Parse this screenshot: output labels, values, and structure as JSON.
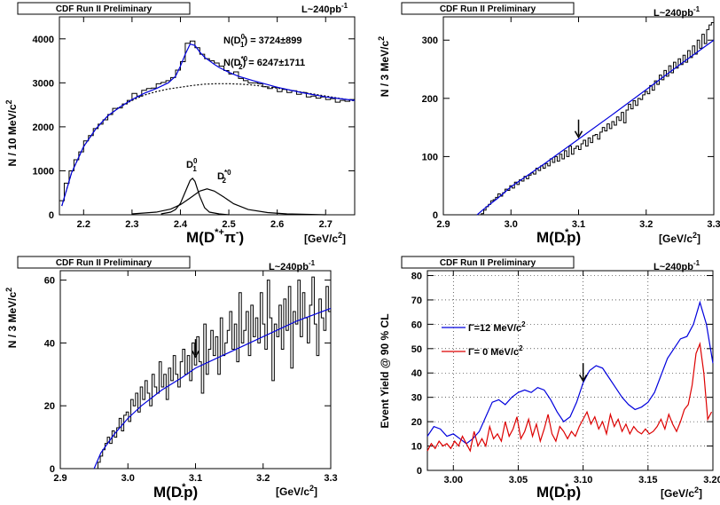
{
  "chart_data": [
    {
      "type": "histogram",
      "header": "CDF Run II Preliminary",
      "lumi_prefix": "L~240pb",
      "lumi_sup": "-1",
      "xlabel": "M(D",
      "xlabel_sup": "*+",
      "xlabel_end": "π",
      "xlabel_sup2": "-",
      "xlabel_close": ")",
      "xunit": "[GeV/c",
      "xunit_sup": "2",
      "xunit_close": "]",
      "ylabel": "N / 10 MeV/c",
      "ylabel_sup": "2",
      "xlim": [
        2.15,
        2.76
      ],
      "ylim": [
        0,
        4500
      ],
      "xticks": [
        2.2,
        2.3,
        2.4,
        2.5,
        2.6,
        2.7
      ],
      "xtick_labels": [
        "2.2",
        "2.3",
        "2.4",
        "2.5",
        "2.6",
        "2.7"
      ],
      "yticks": [
        0,
        1000,
        2000,
        3000,
        4000
      ],
      "ytick_labels": [
        "0",
        "1000",
        "2000",
        "3000",
        "4000"
      ],
      "ann1_a": "N(D",
      "ann1_sup": "0",
      "ann1_sub": "1",
      "ann1_b": ") = 3724±899",
      "ann2_a": "N(D",
      "ann2_sup": "*0",
      "ann2_sub": "2",
      "ann2_b": ") = 6247±1711",
      "peak1_label": "D",
      "peak1_sup": "0",
      "peak1_sub": "1",
      "peak2_label": "D",
      "peak2_sup": "*0",
      "peak2_sub": "2",
      "hist_x": [
        2.155,
        2.165,
        2.175,
        2.185,
        2.195,
        2.205,
        2.215,
        2.225,
        2.235,
        2.245,
        2.255,
        2.265,
        2.275,
        2.285,
        2.295,
        2.305,
        2.315,
        2.325,
        2.335,
        2.345,
        2.355,
        2.365,
        2.375,
        2.385,
        2.395,
        2.405,
        2.415,
        2.425,
        2.435,
        2.445,
        2.455,
        2.465,
        2.475,
        2.485,
        2.495,
        2.505,
        2.515,
        2.525,
        2.535,
        2.545,
        2.555,
        2.565,
        2.575,
        2.585,
        2.595,
        2.605,
        2.615,
        2.625,
        2.635,
        2.645,
        2.655,
        2.665,
        2.675,
        2.685,
        2.695,
        2.705,
        2.715,
        2.725,
        2.735,
        2.745,
        2.755
      ],
      "hist_y": [
        320,
        720,
        1000,
        1250,
        1430,
        1680,
        1800,
        1960,
        2060,
        2160,
        2280,
        2420,
        2430,
        2520,
        2600,
        2760,
        2700,
        2830,
        2870,
        2880,
        2980,
        3010,
        3050,
        3120,
        3290,
        3480,
        3900,
        3950,
        3800,
        3650,
        3550,
        3500,
        3450,
        3380,
        3280,
        3200,
        3250,
        3100,
        3050,
        3000,
        3000,
        2980,
        2910,
        2870,
        2900,
        2800,
        2850,
        2780,
        2820,
        2740,
        2780,
        2680,
        2700,
        2650,
        2680,
        2620,
        2640,
        2560,
        2600,
        2580,
        2620
      ],
      "fit_x": [
        2.155,
        2.175,
        2.2,
        2.225,
        2.25,
        2.275,
        2.3,
        2.325,
        2.35,
        2.375,
        2.39,
        2.4,
        2.41,
        2.42,
        2.43,
        2.44,
        2.45,
        2.46,
        2.47,
        2.48,
        2.5,
        2.52,
        2.55,
        2.6,
        2.65,
        2.7,
        2.76
      ],
      "fit_y": [
        200,
        950,
        1550,
        1950,
        2250,
        2450,
        2620,
        2760,
        2870,
        3000,
        3150,
        3380,
        3650,
        3880,
        3850,
        3700,
        3580,
        3500,
        3420,
        3350,
        3240,
        3150,
        3050,
        2900,
        2780,
        2680,
        2600
      ],
      "bkg_x": [
        2.155,
        2.175,
        2.2,
        2.225,
        2.25,
        2.275,
        2.3,
        2.325,
        2.35,
        2.375,
        2.4,
        2.425,
        2.45,
        2.475,
        2.5,
        2.525,
        2.55,
        2.6,
        2.65,
        2.7,
        2.76
      ],
      "bkg_y": [
        200,
        950,
        1550,
        1950,
        2250,
        2450,
        2600,
        2720,
        2800,
        2860,
        2900,
        2940,
        2970,
        2980,
        2980,
        2970,
        2950,
        2880,
        2790,
        2700,
        2590
      ],
      "sig1_x": [
        2.36,
        2.38,
        2.39,
        2.4,
        2.41,
        2.42,
        2.425,
        2.43,
        2.44,
        2.45,
        2.46,
        2.48,
        2.5
      ],
      "sig1_y": [
        20,
        60,
        120,
        260,
        520,
        780,
        830,
        760,
        420,
        160,
        60,
        20,
        0
      ],
      "sig2_x": [
        2.3,
        2.35,
        2.38,
        2.4,
        2.42,
        2.44,
        2.455,
        2.47,
        2.49,
        2.51,
        2.54,
        2.58,
        2.62,
        2.7
      ],
      "sig2_y": [
        20,
        60,
        130,
        230,
        380,
        540,
        590,
        540,
        400,
        250,
        120,
        50,
        20,
        0
      ]
    },
    {
      "type": "histogram",
      "header": "CDF Run II Preliminary",
      "lumi_prefix": "L~240pb",
      "lumi_sup": "-1",
      "xlabel": "M(D",
      "xlabel_sup": "*",
      "xlabel_sub": "-",
      "xlabel_end": "p)",
      "xunit": "[GeV/c",
      "xunit_sup": "2",
      "xunit_close": "]",
      "ylabel": "N / 3 MeV/c",
      "ylabel_sup": "2",
      "xlim": [
        2.9,
        3.3
      ],
      "ylim": [
        0,
        340
      ],
      "xticks": [
        2.9,
        3.0,
        3.1,
        3.2,
        3.3
      ],
      "xtick_labels": [
        "2.9",
        "3.0",
        "3.1",
        "3.2",
        "3.3"
      ],
      "yticks": [
        0,
        100,
        200,
        300
      ],
      "ytick_labels": [
        "0",
        "100",
        "200",
        "300"
      ],
      "arrow_x": 3.1,
      "arrow_y": 130,
      "hist_y": [
        0,
        0,
        0,
        0,
        0,
        0,
        0,
        0,
        0,
        0,
        0,
        0,
        0,
        0,
        0,
        0,
        2,
        8,
        14,
        18,
        24,
        26,
        30,
        36,
        32,
        38,
        44,
        42,
        50,
        46,
        56,
        52,
        60,
        58,
        66,
        62,
        68,
        72,
        70,
        80,
        76,
        84,
        80,
        88,
        84,
        96,
        90,
        100,
        92,
        104,
        96,
        110,
        100,
        118,
        104,
        114,
        118,
        112,
        122,
        128,
        118,
        132,
        124,
        136,
        138,
        130,
        142,
        150,
        144,
        156,
        148,
        160,
        154,
        168,
        162,
        176,
        158,
        180,
        190,
        182,
        196,
        188,
        200,
        198,
        206,
        212,
        208,
        222,
        214,
        230,
        224,
        240,
        232,
        248,
        238,
        256,
        244,
        262,
        252,
        268,
        258,
        274,
        262,
        282,
        270,
        290,
        276,
        300,
        286,
        310,
        294,
        318,
        326,
        330
      ],
      "fit_x": [
        2.95,
        2.96,
        2.98,
        3.0,
        3.02,
        3.05,
        3.1,
        3.15,
        3.2,
        3.25,
        3.3
      ],
      "fit_y": [
        0,
        10,
        28,
        48,
        64,
        88,
        130,
        172,
        215,
        258,
        300
      ]
    },
    {
      "type": "histogram",
      "header": "CDF Run II Preliminary",
      "lumi_prefix": "L~240pb",
      "lumi_sup": "-1",
      "xlabel": "M(D",
      "xlabel_sup": "*",
      "xlabel_sub": "-",
      "xlabel_end": "p)",
      "xunit": "[GeV/c",
      "xunit_sup": "2",
      "xunit_close": "]",
      "ylabel": "N / 3 MeV/c",
      "ylabel_sup": "2",
      "xlim": [
        2.9,
        3.3
      ],
      "ylim": [
        0,
        63
      ],
      "xticks": [
        2.9,
        3.0,
        3.1,
        3.2,
        3.3
      ],
      "xtick_labels": [
        "2.9",
        "3.0",
        "3.1",
        "3.2",
        "3.3"
      ],
      "yticks": [
        0,
        20,
        40,
        60
      ],
      "ytick_labels": [
        "0",
        "20",
        "40",
        "60"
      ],
      "arrow_x": 3.1,
      "arrow_y": 35,
      "hist_y": [
        0,
        0,
        0,
        0,
        0,
        0,
        0,
        0,
        0,
        0,
        0,
        0,
        0,
        0,
        0,
        0,
        2,
        4,
        6,
        8,
        10,
        8,
        12,
        10,
        13,
        16,
        12,
        17,
        18,
        15,
        22,
        20,
        24,
        18,
        26,
        22,
        28,
        24,
        20,
        30,
        26,
        24,
        34,
        26,
        30,
        22,
        32,
        28,
        36,
        30,
        26,
        34,
        38,
        30,
        36,
        28,
        40,
        33,
        42,
        34,
        24,
        46,
        30,
        38,
        44,
        36,
        42,
        30,
        48,
        36,
        40,
        44,
        50,
        38,
        46,
        34,
        56,
        40,
        44,
        50,
        36,
        52,
        42,
        48,
        40,
        56,
        46,
        38,
        60,
        48,
        28,
        46,
        42,
        52,
        38,
        54,
        44,
        58,
        32,
        50,
        46,
        60,
        42,
        56,
        48,
        40,
        52,
        61,
        46,
        36,
        54,
        48,
        44,
        58,
        50
      ],
      "fit_x": [
        2.95,
        2.96,
        2.98,
        3.0,
        3.02,
        3.05,
        3.08,
        3.1,
        3.15,
        3.2,
        3.25,
        3.3
      ],
      "fit_y": [
        0,
        5,
        11,
        16,
        20,
        25,
        29,
        32,
        37,
        42,
        47,
        51
      ]
    },
    {
      "type": "line",
      "header": "CDF Run II Preliminary",
      "lumi_prefix": "L~240pb",
      "lumi_sup": "-1",
      "xlabel": "M(D",
      "xlabel_sup": "*",
      "xlabel_sub": "-",
      "xlabel_end": "p)",
      "xunit": "[GeV/c",
      "xunit_sup": "2",
      "xunit_close": "]",
      "ylabel": "Event Yield @ 90 % CL",
      "xlim": [
        2.98,
        3.2
      ],
      "ylim": [
        0,
        82
      ],
      "grid": true,
      "xticks": [
        3.0,
        3.05,
        3.1,
        3.15,
        3.2
      ],
      "xtick_labels": [
        "3.00",
        "3.05",
        "3.10",
        "3.15",
        "3.20"
      ],
      "yticks": [
        0,
        10,
        20,
        30,
        40,
        50,
        60,
        70,
        80
      ],
      "ytick_labels": [
        "0",
        "10",
        "20",
        "30",
        "40",
        "50",
        "60",
        "70",
        "80"
      ],
      "arrow_x": 3.1,
      "arrow_y": 36,
      "series": [
        {
          "name": "Γ=12 MeV/c",
          "name_sup": "2",
          "color": "#0000dd",
          "x": [
            2.98,
            2.985,
            2.99,
            2.995,
            3.0,
            3.005,
            3.01,
            3.015,
            3.02,
            3.025,
            3.03,
            3.035,
            3.04,
            3.045,
            3.05,
            3.055,
            3.06,
            3.065,
            3.07,
            3.075,
            3.08,
            3.085,
            3.09,
            3.095,
            3.1,
            3.105,
            3.11,
            3.115,
            3.12,
            3.125,
            3.13,
            3.135,
            3.14,
            3.145,
            3.15,
            3.155,
            3.16,
            3.165,
            3.17,
            3.175,
            3.18,
            3.185,
            3.19,
            3.195,
            3.2
          ],
          "y": [
            14,
            18,
            17,
            14,
            15,
            13,
            11,
            13,
            16,
            22,
            28,
            29,
            27,
            30,
            32,
            33,
            32,
            34,
            33,
            29,
            24,
            20,
            22,
            28,
            36,
            41,
            43,
            42,
            38,
            34,
            30,
            27,
            25,
            26,
            28,
            32,
            39,
            46,
            50,
            54,
            55,
            60,
            69,
            60,
            44
          ]
        },
        {
          "name": "Γ= 0 MeV/c",
          "name_sup": "2",
          "color": "#dd0000",
          "x": [
            2.98,
            2.983,
            2.986,
            2.989,
            2.992,
            2.995,
            2.998,
            3.001,
            3.004,
            3.007,
            3.01,
            3.013,
            3.016,
            3.019,
            3.022,
            3.025,
            3.028,
            3.031,
            3.034,
            3.037,
            3.04,
            3.043,
            3.046,
            3.049,
            3.052,
            3.055,
            3.058,
            3.061,
            3.064,
            3.067,
            3.07,
            3.073,
            3.076,
            3.079,
            3.082,
            3.085,
            3.088,
            3.091,
            3.094,
            3.097,
            3.1,
            3.103,
            3.106,
            3.109,
            3.112,
            3.115,
            3.118,
            3.121,
            3.124,
            3.127,
            3.13,
            3.133,
            3.136,
            3.139,
            3.142,
            3.145,
            3.148,
            3.151,
            3.154,
            3.157,
            3.16,
            3.163,
            3.166,
            3.169,
            3.172,
            3.175,
            3.178,
            3.181,
            3.184,
            3.187,
            3.19,
            3.193,
            3.196,
            3.199
          ],
          "y": [
            8,
            11,
            9,
            12,
            10,
            11,
            9,
            12,
            10,
            14,
            11,
            8,
            16,
            10,
            13,
            10,
            18,
            13,
            15,
            12,
            20,
            14,
            17,
            22,
            13,
            16,
            21,
            14,
            19,
            12,
            17,
            23,
            15,
            12,
            18,
            16,
            13,
            16,
            14,
            18,
            21,
            24,
            19,
            22,
            17,
            20,
            15,
            23,
            18,
            21,
            16,
            19,
            15,
            18,
            16,
            15,
            17,
            15,
            16,
            18,
            21,
            17,
            23,
            19,
            16,
            20,
            25,
            27,
            35,
            48,
            52,
            40,
            21,
            24
          ]
        }
      ]
    }
  ]
}
